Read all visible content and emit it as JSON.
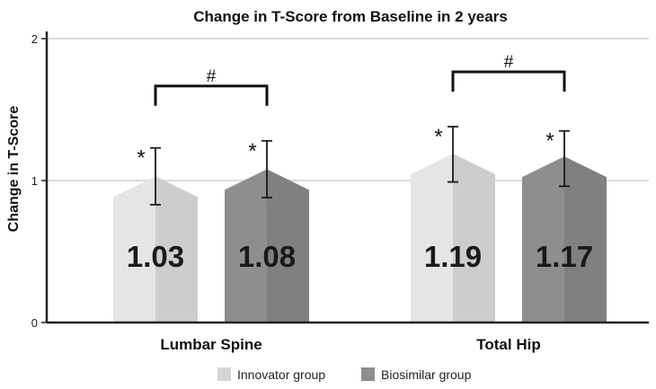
{
  "chart_data": {
    "type": "bar",
    "title": "Change in T-Score from Baseline in 2 years",
    "xlabel": "",
    "ylabel": "Change in T-Score",
    "ylim": [
      0,
      2
    ],
    "yticks": [
      "0",
      "1",
      "2"
    ],
    "grid": true,
    "legend_position": "bottom",
    "categories": [
      "Lumbar Spine",
      "Total Hip"
    ],
    "series": [
      {
        "name": "Innovator group",
        "color": "#d6d6d6",
        "values": [
          1.03,
          1.19
        ],
        "labels": [
          "1.03",
          "1.19"
        ],
        "error_low": [
          0.83,
          0.99
        ],
        "error_high": [
          1.23,
          1.38
        ],
        "marker": [
          "*",
          "*"
        ]
      },
      {
        "name": "Biosimilar group",
        "color": "#8e8e8e",
        "values": [
          1.08,
          1.17
        ],
        "labels": [
          "1.08",
          "1.17"
        ],
        "error_low": [
          0.88,
          0.96
        ],
        "error_high": [
          1.28,
          1.35
        ],
        "marker": [
          "*",
          "*"
        ]
      }
    ],
    "group_annotation": [
      "#",
      "#"
    ]
  }
}
